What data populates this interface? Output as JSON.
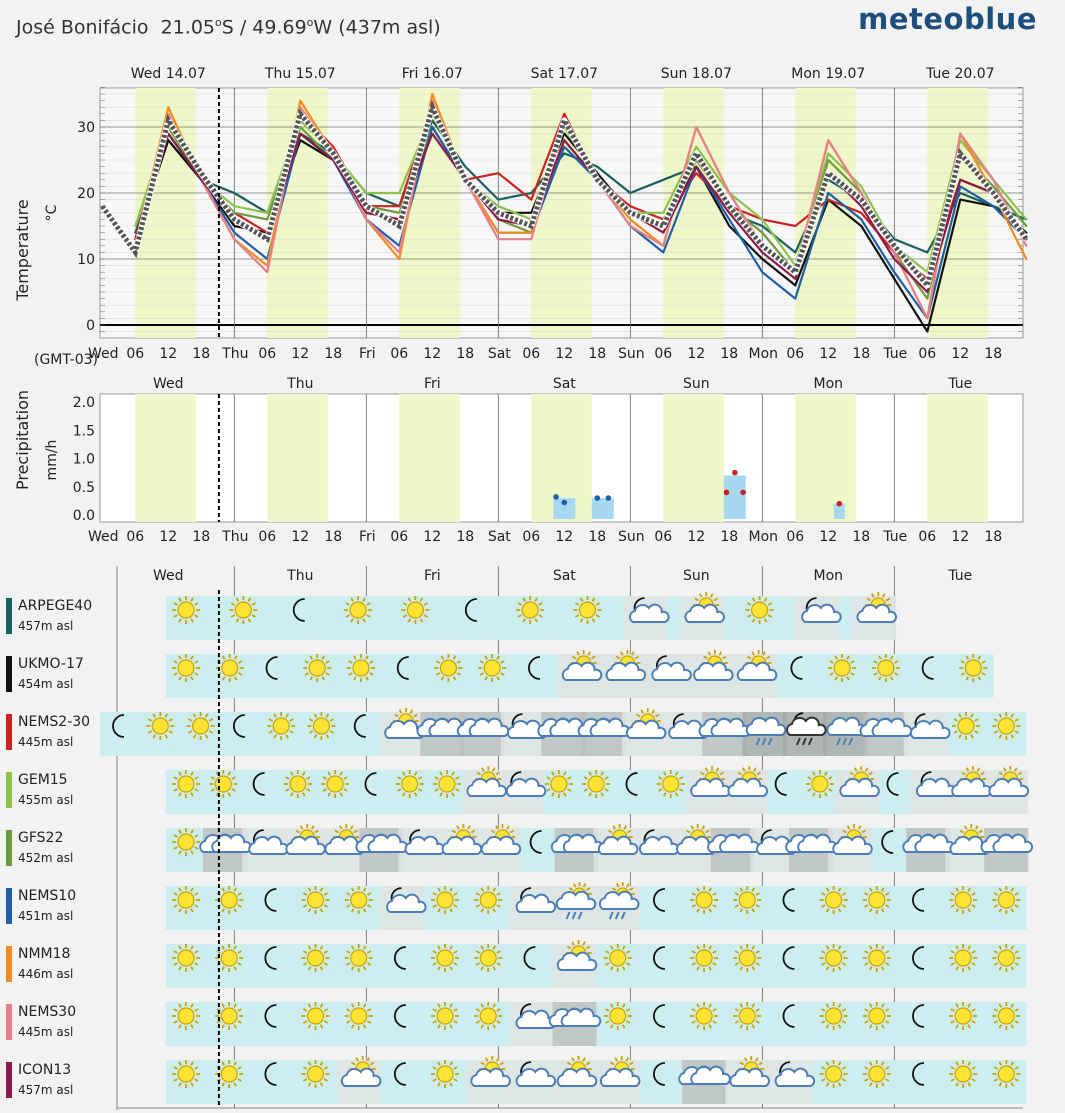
{
  "header": {
    "location": "José Bonifácio  21.05",
    "deg1": "o",
    "lat_suffix": "S / 49.69",
    "deg2": "o",
    "lon_suffix": "W (437m asl)",
    "brand": "meteoblue"
  },
  "timezone": "(GMT-03)",
  "days_long": [
    "Wed 14.07",
    "Thu 15.07",
    "Fri 16.07",
    "Sat 17.07",
    "Sun 18.07",
    "Mon 19.07",
    "Tue 20.07"
  ],
  "days_short": [
    "Wed",
    "Thu",
    "Fri",
    "Sat",
    "Sun",
    "Mon",
    "Tue"
  ],
  "hour_labels": [
    "06",
    "12",
    "18"
  ],
  "chart_data": [
    {
      "type": "line",
      "ylabel": "Temperature",
      "yunit": "°C",
      "ylim": [
        -1,
        36
      ],
      "yticks": [
        0,
        10,
        20,
        30
      ],
      "x_unit": "hours from Wed 00:00 (local)",
      "series": [
        {
          "name": "ARPEGE40",
          "color": "#1b6060",
          "x": [
            6,
            12,
            18,
            24,
            30,
            36,
            42,
            48,
            54,
            60,
            66,
            72,
            78,
            84,
            90,
            96,
            102,
            108,
            114,
            120,
            126,
            132,
            138,
            144,
            150,
            156,
            162,
            168
          ],
          "values": [
            14,
            28,
            22,
            20,
            17,
            29,
            26,
            20,
            18,
            31,
            24,
            19,
            20,
            26,
            24,
            20,
            22,
            24,
            17,
            15,
            11,
            22,
            19,
            13,
            11,
            20,
            18,
            16
          ]
        },
        {
          "name": "UKMO-17",
          "color": "#111111",
          "x": [
            6,
            12,
            18,
            24,
            30,
            36,
            42,
            48,
            54,
            60,
            66,
            72,
            78,
            84,
            90,
            96,
            102,
            108,
            114,
            120,
            126,
            132,
            138,
            144,
            150,
            156,
            162,
            168
          ],
          "values": [
            13,
            28,
            22,
            15,
            14,
            28,
            25,
            17,
            16,
            30,
            22,
            17,
            17,
            29,
            23,
            17,
            15,
            24,
            15,
            10,
            6,
            19,
            15,
            7,
            -1,
            19,
            18,
            14
          ]
        },
        {
          "name": "NEMS2-30",
          "color": "#cc2222",
          "x": [
            6,
            12,
            18,
            24,
            30,
            36,
            42,
            48,
            54,
            60,
            66,
            72,
            78,
            84,
            90,
            96,
            102,
            108,
            114,
            120,
            126,
            132,
            138,
            144,
            150,
            156,
            162,
            168
          ],
          "values": [
            13,
            31,
            22,
            17,
            14,
            32,
            27,
            18,
            18,
            33,
            22,
            23,
            19,
            32,
            22,
            18,
            16,
            23,
            18,
            16,
            15,
            19,
            17,
            11,
            7,
            22,
            20,
            13
          ]
        },
        {
          "name": "GEM15",
          "color": "#8bc34a",
          "x": [
            6,
            12,
            18,
            24,
            30,
            36,
            42,
            48,
            54,
            60,
            66,
            72,
            78,
            84,
            90,
            96,
            102,
            108,
            114,
            120,
            126,
            132,
            138,
            144,
            150,
            156,
            162,
            168
          ],
          "values": [
            15,
            30,
            22,
            18,
            17,
            31,
            26,
            20,
            20,
            32,
            22,
            18,
            16,
            30,
            22,
            17,
            17,
            27,
            20,
            16,
            9,
            26,
            21,
            12,
            8,
            28,
            22,
            16
          ]
        },
        {
          "name": "GFS22",
          "color": "#6a9a3a",
          "x": [
            6,
            12,
            18,
            24,
            30,
            36,
            42,
            48,
            54,
            60,
            66,
            72,
            78,
            84,
            90,
            96,
            102,
            108,
            114,
            120,
            126,
            132,
            138,
            144,
            150,
            156,
            162,
            168
          ],
          "values": [
            12,
            30,
            22,
            17,
            16,
            30,
            25,
            18,
            17,
            30,
            22,
            16,
            14,
            28,
            22,
            17,
            15,
            25,
            18,
            14,
            8,
            25,
            20,
            11,
            4,
            26,
            21,
            15
          ]
        },
        {
          "name": "NEMS10",
          "color": "#1f5fa8",
          "x": [
            6,
            12,
            18,
            24,
            30,
            36,
            42,
            48,
            54,
            60,
            66,
            72,
            78,
            84,
            90,
            96,
            102,
            108,
            114,
            120,
            126,
            132,
            138,
            144,
            150,
            156,
            162,
            168
          ],
          "values": [
            12,
            29,
            22,
            14,
            10,
            29,
            25,
            16,
            12,
            30,
            22,
            14,
            14,
            27,
            22,
            15,
            11,
            24,
            16,
            8,
            4,
            20,
            16,
            8,
            1,
            21,
            18,
            13
          ]
        },
        {
          "name": "NMM18",
          "color": "#f28c1e",
          "x": [
            6,
            12,
            18,
            24,
            30,
            36,
            42,
            48,
            54,
            60,
            66,
            72,
            78,
            84,
            90,
            96,
            102,
            108,
            114,
            120,
            126,
            132,
            138,
            144,
            150,
            156,
            162,
            168
          ],
          "values": [
            12,
            33,
            22,
            13,
            9,
            34,
            26,
            16,
            10,
            35,
            22,
            14,
            14,
            31,
            22,
            16,
            12,
            30,
            20,
            12,
            8,
            28,
            20,
            11,
            1,
            29,
            20,
            10
          ]
        },
        {
          "name": "NEMS30",
          "color": "#e6808a",
          "x": [
            6,
            12,
            18,
            24,
            30,
            36,
            42,
            48,
            54,
            60,
            66,
            72,
            78,
            84,
            90,
            96,
            102,
            108,
            114,
            120,
            126,
            132,
            138,
            144,
            150,
            156,
            162,
            168
          ],
          "values": [
            12,
            32,
            22,
            13,
            8,
            33,
            26,
            16,
            11,
            34,
            22,
            13,
            13,
            31,
            22,
            15,
            12,
            30,
            20,
            12,
            8,
            28,
            20,
            11,
            1,
            29,
            22,
            12
          ]
        },
        {
          "name": "ICON13",
          "color": "#8b1a4a",
          "x": [
            6,
            12,
            18,
            24,
            30,
            36,
            42,
            48,
            54,
            60,
            66,
            72,
            78,
            84,
            90,
            96,
            102,
            108,
            114,
            120,
            126,
            132,
            138,
            144,
            150,
            156,
            162,
            168
          ],
          "values": [
            12,
            29,
            22,
            16,
            13,
            29,
            25,
            17,
            16,
            29,
            22,
            16,
            15,
            28,
            22,
            17,
            14,
            24,
            17,
            11,
            7,
            23,
            18,
            10,
            5,
            22,
            20,
            13
          ]
        },
        {
          "name": "mean",
          "color": "#555555",
          "dashed": true,
          "x": [
            0,
            6,
            12,
            18,
            24,
            30,
            36,
            42,
            48,
            54,
            60,
            66,
            72,
            78,
            84,
            90,
            96,
            102,
            108,
            114,
            120,
            126,
            132,
            138,
            144,
            150,
            156,
            162,
            168
          ],
          "values": [
            18,
            11,
            31,
            23,
            16,
            13,
            32,
            26,
            18,
            15,
            33,
            22,
            17,
            15,
            31,
            22,
            17,
            15,
            26,
            18,
            12,
            8,
            23,
            19,
            12,
            6,
            26,
            20,
            13
          ]
        }
      ]
    },
    {
      "type": "bar",
      "ylabel": "Precipitation",
      "yunit": "mm/h",
      "ylim": [
        0,
        2.1
      ],
      "yticks": [
        "0.0",
        "0.5",
        "1.0",
        "1.5",
        "2.0"
      ],
      "ytick_values": [
        0,
        0.5,
        1.0,
        1.5,
        2.0
      ],
      "x_unit": "hours from Wed 00:00 (local)",
      "bars": [
        {
          "x": [
            82,
            86
          ],
          "value": 0.3
        },
        {
          "x": [
            89,
            93
          ],
          "value": 0.3
        },
        {
          "x": [
            113,
            117
          ],
          "value": 0.7
        },
        {
          "x": [
            133,
            135
          ],
          "value": 0.2
        }
      ],
      "points": [
        {
          "x": 82.5,
          "value": 0.32,
          "color": "#1f5fa8"
        },
        {
          "x": 84,
          "value": 0.22,
          "color": "#1f5fa8"
        },
        {
          "x": 90,
          "value": 0.3,
          "color": "#1f5fa8"
        },
        {
          "x": 92,
          "value": 0.3,
          "color": "#1f5fa8"
        },
        {
          "x": 113.5,
          "value": 0.4,
          "color": "#cc2222"
        },
        {
          "x": 115,
          "value": 0.75,
          "color": "#cc2222"
        },
        {
          "x": 116.5,
          "value": 0.4,
          "color": "#cc2222"
        },
        {
          "x": 134,
          "value": 0.2,
          "color": "#cc2222"
        }
      ]
    }
  ],
  "models": [
    {
      "name": "ARPEGE40",
      "asl": "457m asl",
      "color": "#1b6060",
      "end": 144,
      "icons": [
        "sun",
        "sun",
        "moon",
        "sun",
        "sun",
        "moon",
        "sun",
        "sun",
        "mooncloud",
        "suncloud",
        "sun",
        "mooncloud",
        "suncloud"
      ]
    },
    {
      "name": "UKMO-17",
      "asl": "454m asl",
      "color": "#111111",
      "end": 162,
      "icons": [
        "sun",
        "sun",
        "moon",
        "sun",
        "sun",
        "moon",
        "sun",
        "sun",
        "moon",
        "suncloud",
        "suncloud",
        "mooncloud",
        "suncloud",
        "suncloud",
        "moon",
        "sun",
        "sun",
        "moon",
        "sun"
      ]
    },
    {
      "name": "NEMS2-30",
      "asl": "445m asl",
      "color": "#cc2222",
      "end": 168,
      "icons": [
        "moon",
        "sun",
        "sun",
        "moon",
        "sun",
        "sun",
        "moon",
        "suncloud",
        "cloud",
        "cloud",
        "mooncloud",
        "cloud",
        "cloud",
        "suncloud",
        "mooncloud",
        "cloud",
        "rain",
        "rainmoon",
        "rain",
        "cloud",
        "mooncloud",
        "sun",
        "sun"
      ]
    },
    {
      "name": "GEM15",
      "asl": "455m asl",
      "color": "#8bc34a",
      "end": 168,
      "icons": [
        "sun",
        "sun",
        "moon",
        "sun",
        "sun",
        "moon",
        "sun",
        "sun",
        "suncloud",
        "mooncloud",
        "sun",
        "sun",
        "moon",
        "sun",
        "suncloud",
        "suncloud",
        "moon",
        "sun",
        "suncloud",
        "moon",
        "mooncloud",
        "suncloud",
        "suncloud"
      ]
    },
    {
      "name": "GFS22",
      "asl": "452m asl",
      "color": "#6a9a3a",
      "end": 168,
      "icons": [
        "sun",
        "cloud",
        "mooncloud",
        "suncloud",
        "suncloud",
        "cloud",
        "mooncloud",
        "suncloud",
        "suncloud",
        "moon",
        "cloud",
        "suncloud",
        "mooncloud",
        "suncloud",
        "cloud",
        "mooncloud",
        "cloud",
        "suncloud",
        "moon",
        "cloud",
        "suncloud",
        "cloud"
      ]
    },
    {
      "name": "NEMS10",
      "asl": "451m asl",
      "color": "#1f5fa8",
      "end": 168,
      "icons": [
        "sun",
        "sun",
        "moon",
        "sun",
        "sun",
        "mooncloud",
        "sun",
        "sun",
        "mooncloud",
        "rainsun",
        "rainsun",
        "moon",
        "sun",
        "sun",
        "moon",
        "sun",
        "sun",
        "moon",
        "sun",
        "sun"
      ]
    },
    {
      "name": "NMM18",
      "asl": "446m asl",
      "color": "#f28c1e",
      "end": 168,
      "icons": [
        "sun",
        "sun",
        "moon",
        "sun",
        "sun",
        "moon",
        "sun",
        "sun",
        "moon",
        "suncloud",
        "sun",
        "moon",
        "sun",
        "sun",
        "moon",
        "sun",
        "sun",
        "moon",
        "sun",
        "sun"
      ]
    },
    {
      "name": "NEMS30",
      "asl": "445m asl",
      "color": "#e6808a",
      "end": 168,
      "icons": [
        "sun",
        "sun",
        "moon",
        "sun",
        "sun",
        "moon",
        "sun",
        "sun",
        "mooncloud",
        "cloud",
        "sun",
        "moon",
        "sun",
        "sun",
        "moon",
        "sun",
        "sun",
        "moon",
        "sun",
        "sun"
      ]
    },
    {
      "name": "ICON13",
      "asl": "457m asl",
      "color": "#8b1a4a",
      "end": 168,
      "icons": [
        "sun",
        "sun",
        "moon",
        "sun",
        "suncloud",
        "moon",
        "sun",
        "suncloud",
        "mooncloud",
        "suncloud",
        "suncloud",
        "moon",
        "cloud",
        "suncloud",
        "mooncloud",
        "sun",
        "sun",
        "moon",
        "sun",
        "sun"
      ]
    }
  ]
}
